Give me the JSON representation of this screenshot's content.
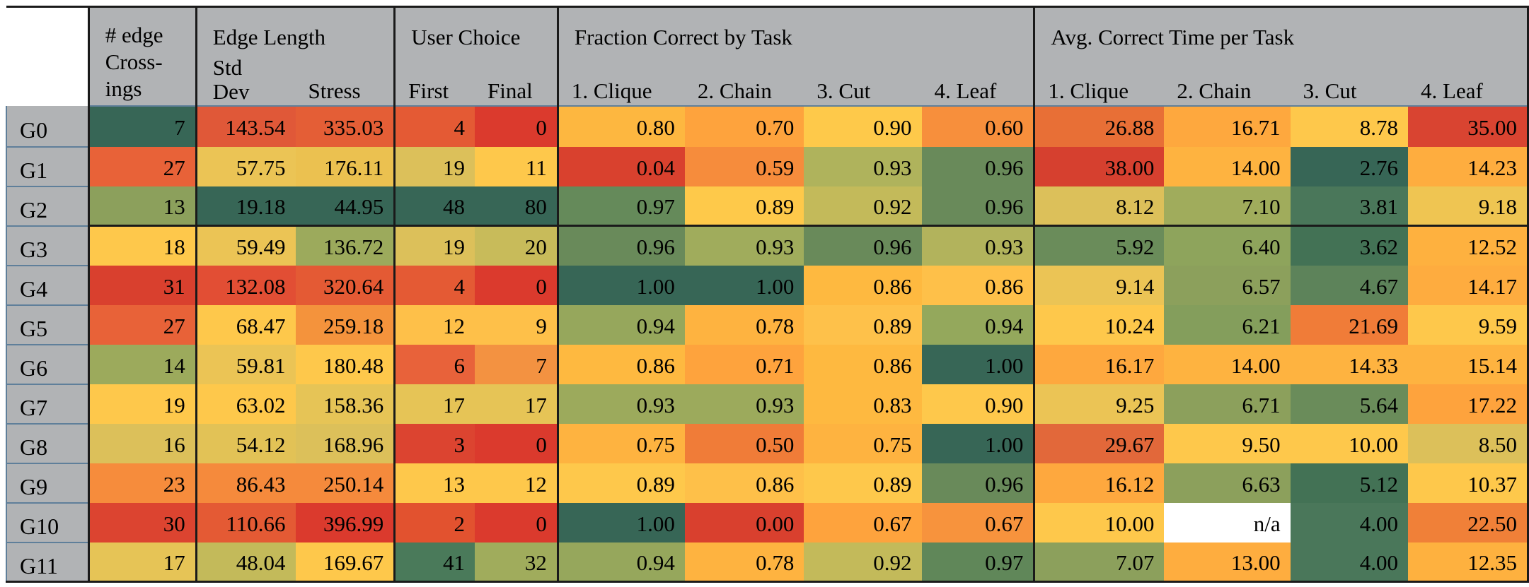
{
  "header": {
    "crossings": "#   edge Cross-ings",
    "crossings_l1": "#   edge",
    "crossings_l2": "Cross-",
    "crossings_l3": "ings",
    "edge_length": "Edge Length",
    "std_dev_l1": "Std",
    "std_dev_l2": "Dev",
    "stress": "Stress",
    "user_choice": "User Choice",
    "first": "First",
    "final": "Final",
    "fraction_correct": "Fraction Correct by Task",
    "avg_time": "Avg. Correct Time per Task",
    "tasks": [
      "1. Clique",
      "2. Chain",
      "3. Cut",
      "4. Leaf"
    ]
  },
  "rows": [
    {
      "label": "G0",
      "vals": [
        "7",
        "143.54",
        "335.03",
        "4",
        "0",
        "0.80",
        "0.70",
        "0.90",
        "0.60",
        "26.88",
        "16.71",
        "8.78",
        "35.00"
      ],
      "colors": [
        "#376656",
        "#e05838",
        "#e45e36",
        "#e45a34",
        "#db3a2d",
        "#fdb740",
        "#fea33d",
        "#fec94a",
        "#f78f3c",
        "#e86f36",
        "#fea83e",
        "#fec84b",
        "#d94431"
      ]
    },
    {
      "label": "G1",
      "vals": [
        "27",
        "57.75",
        "176.11",
        "19",
        "11",
        "0.04",
        "0.59",
        "0.93",
        "0.96",
        "38.00",
        "14.00",
        "2.76",
        "14.23"
      ],
      "colors": [
        "#e86238",
        "#ebc455",
        "#ebc150",
        "#dcc05a",
        "#fec84b",
        "#d9412e",
        "#f68c3c",
        "#afb35c",
        "#698a5a",
        "#d6402f",
        "#feb340",
        "#376656",
        "#fead3f"
      ]
    },
    {
      "label": "G2",
      "vals": [
        "13",
        "19.18",
        "44.95",
        "48",
        "80",
        "0.97",
        "0.89",
        "0.92",
        "0.96",
        "8.12",
        "7.10",
        "3.81",
        "9.18"
      ],
      "colors": [
        "#8ca05c",
        "#376656",
        "#376656",
        "#376656",
        "#376656",
        "#658a5a",
        "#fec94a",
        "#c3ba5a",
        "#698a5a",
        "#dcc05a",
        "#a0ac5c",
        "#4a775a",
        "#efc552"
      ]
    },
    {
      "label": "G3",
      "vals": [
        "18",
        "59.49",
        "136.72",
        "19",
        "20",
        "0.96",
        "0.93",
        "0.96",
        "0.93",
        "5.92",
        "6.40",
        "3.62",
        "12.52"
      ],
      "colors": [
        "#fec84b",
        "#ebc455",
        "#9caa5c",
        "#dcc05a",
        "#c8bb5a",
        "#698a5a",
        "#a0ac5c",
        "#698a5a",
        "#b2b35c",
        "#6a8c5a",
        "#8ea45c",
        "#437255",
        "#feb13f"
      ]
    },
    {
      "label": "G4",
      "vals": [
        "31",
        "132.08",
        "320.64",
        "4",
        "0",
        "1.00",
        "1.00",
        "0.86",
        "0.86",
        "9.14",
        "6.57",
        "4.67",
        "14.17"
      ],
      "colors": [
        "#d9402e",
        "#e24e34",
        "#e45a34",
        "#e45a34",
        "#db3a2d",
        "#376656",
        "#376656",
        "#feb940",
        "#fec049",
        "#ebc455",
        "#8ca05c",
        "#5d835a",
        "#feac3f"
      ]
    },
    {
      "label": "G5",
      "vals": [
        "27",
        "68.47",
        "259.18",
        "12",
        "9",
        "0.94",
        "0.78",
        "0.89",
        "0.94",
        "10.24",
        "6.21",
        "21.69",
        "9.59"
      ],
      "colors": [
        "#e86238",
        "#fec84b",
        "#f4933c",
        "#fec049",
        "#fec049",
        "#96a75c",
        "#feb340",
        "#fec14a",
        "#94a85c",
        "#fec84b",
        "#849e5c",
        "#f07c38",
        "#fec84b"
      ]
    },
    {
      "label": "G6",
      "vals": [
        "14",
        "59.81",
        "180.48",
        "6",
        "7",
        "0.86",
        "0.71",
        "0.86",
        "1.00",
        "16.17",
        "14.00",
        "14.33",
        "15.14"
      ],
      "colors": [
        "#9caa5c",
        "#ebc455",
        "#fec84b",
        "#e8623a",
        "#f39241",
        "#feb940",
        "#fea33d",
        "#feb940",
        "#376656",
        "#fea83e",
        "#feb340",
        "#feb340",
        "#feb340"
      ]
    },
    {
      "label": "G7",
      "vals": [
        "19",
        "63.02",
        "158.36",
        "17",
        "17",
        "0.93",
        "0.93",
        "0.83",
        "0.90",
        "9.25",
        "6.71",
        "5.64",
        "17.22"
      ],
      "colors": [
        "#fec84b",
        "#fec84b",
        "#e6c456",
        "#e6c456",
        "#e6c456",
        "#9caa5c",
        "#9caa5c",
        "#feb940",
        "#fec84b",
        "#ebc455",
        "#8ca05c",
        "#6a8c5a",
        "#fea33d"
      ]
    },
    {
      "label": "G8",
      "vals": [
        "16",
        "54.12",
        "168.96",
        "3",
        "0",
        "0.75",
        "0.50",
        "0.75",
        "1.00",
        "29.67",
        "9.50",
        "10.00",
        "8.50"
      ],
      "colors": [
        "#dcc05a",
        "#e2c256",
        "#dcc05a",
        "#dc4430",
        "#db3a2d",
        "#feb340",
        "#f07c38",
        "#feb340",
        "#376656",
        "#e2683a",
        "#fec84b",
        "#fec84b",
        "#dcc05a"
      ]
    },
    {
      "label": "G9",
      "vals": [
        "23",
        "86.43",
        "250.14",
        "13",
        "12",
        "0.89",
        "0.86",
        "0.89",
        "0.96",
        "16.12",
        "6.63",
        "5.12",
        "10.37"
      ],
      "colors": [
        "#f68c3c",
        "#f58a3c",
        "#f58a3c",
        "#fec84b",
        "#fec84b",
        "#fec84b",
        "#fec049",
        "#fec84b",
        "#698a5a",
        "#fea83e",
        "#8ca05c",
        "#437255",
        "#fec84b"
      ]
    },
    {
      "label": "G10",
      "vals": [
        "30",
        "110.66",
        "396.99",
        "2",
        "0",
        "1.00",
        "0.00",
        "0.67",
        "0.67",
        "10.00",
        "n/a",
        "4.00",
        "22.50"
      ],
      "colors": [
        "#dc4430",
        "#e45a34",
        "#db3a2d",
        "#e2522f",
        "#db3a2d",
        "#376656",
        "#d9402e",
        "#fea33d",
        "#f7933d",
        "#fec84b",
        "#ffffff",
        "#4a775a",
        "#f08038"
      ]
    },
    {
      "label": "G11",
      "vals": [
        "17",
        "48.04",
        "169.67",
        "41",
        "32",
        "0.94",
        "0.78",
        "0.92",
        "0.97",
        "7.07",
        "13.00",
        "4.00",
        "12.35"
      ],
      "colors": [
        "#e6c456",
        "#c3ba5a",
        "#fec84b",
        "#4a7a5a",
        "#a0ac5c",
        "#96a75c",
        "#feb340",
        "#c3ba5a",
        "#608759",
        "#8ca05c",
        "#fead3f",
        "#4a775a",
        "#feb13f"
      ]
    }
  ]
}
